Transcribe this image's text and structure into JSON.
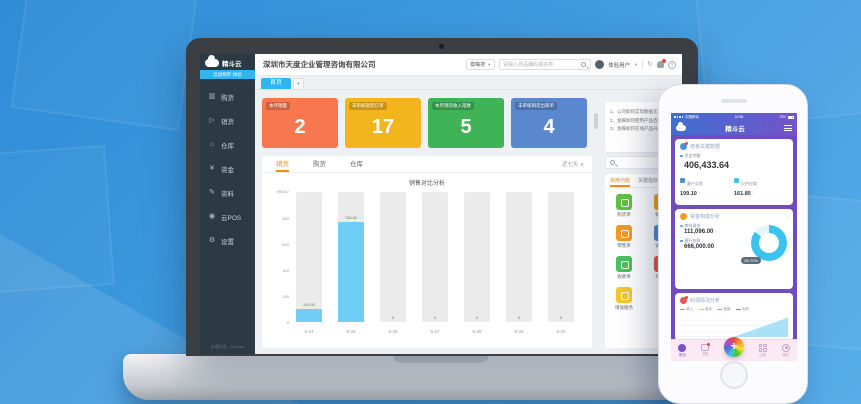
{
  "brand": {
    "name": "精斗云",
    "tagline": "云进销存·体验",
    "accent": "#2eb6f0"
  },
  "desktop": {
    "sidebar": {
      "items": [
        {
          "label": "购货"
        },
        {
          "label": "销货"
        },
        {
          "label": "仓库"
        },
        {
          "label": "资金"
        },
        {
          "label": "资料"
        },
        {
          "label": "云POS"
        },
        {
          "label": "设置"
        }
      ],
      "footer": "金蝶出品 · Jingdou"
    },
    "header": {
      "company": "深圳市天度企业管理咨询有限公司",
      "search_scope": "模糊搜",
      "search_placeholder": "请输入商品编码或名称",
      "user": "体验用户"
    },
    "tab": {
      "active": "首页"
    },
    "stat_cards": [
      {
        "label": "本月销量",
        "value": "2",
        "color": "#f7784f"
      },
      {
        "label": "未审核销货订单",
        "value": "17",
        "color": "#f3b51c"
      },
      {
        "label": "本月销货收入笔数",
        "value": "5",
        "color": "#3fb355"
      },
      {
        "label": "未审核销货出库单",
        "value": "4",
        "color": "#5a88cf"
      }
    ],
    "announcements": {
      "items": [
        "1、公司如何实现数据迁移",
        "2、金蝶如何使用产品百科",
        "3、金蝶如何在线产品升级"
      ]
    },
    "chart_card": {
      "tabs": [
        "销货",
        "购货",
        "仓库"
      ],
      "range": "近七天"
    },
    "quick_panel": {
      "tabs": [
        "常用功能",
        "关键指标"
      ],
      "left_items": [
        {
          "label": "购货单",
          "color": "#63bf47"
        },
        {
          "label": "零售单",
          "color": "#f59a23"
        },
        {
          "label": "收款单",
          "color": "#4cc05e"
        },
        {
          "label": "增值服务",
          "color": "#f6c62d"
        }
      ],
      "right_items": [
        {
          "label": "销货单",
          "color": "#f2a51a"
        },
        {
          "label": "调拨单",
          "color": "#4a90d9"
        },
        {
          "label": "付款单",
          "color": "#e95a4e"
        }
      ]
    }
  },
  "chart_data": [
    {
      "type": "bar",
      "title": "销售对比分析",
      "categories": [
        "5-24",
        "5-25",
        "5-26",
        "5-27",
        "5-28",
        "5-29",
        "5-30"
      ],
      "values": [
        100,
        766.8,
        0,
        0,
        0,
        0,
        0
      ],
      "value_labels": [
        "100.00",
        "766.80",
        "0",
        "0",
        "0",
        "0",
        "0"
      ],
      "ylim": [
        0,
        998.67
      ],
      "yticks": [
        "0",
        "200",
        "400",
        "600",
        "800"
      ],
      "ymax_label": "998.67",
      "bar_color": "#6fcdf6",
      "track_color": "#ebebeb"
    },
    {
      "type": "pie",
      "title": "资金构成分析",
      "labels": [
        "银行存款",
        "库存现金"
      ],
      "values": [
        666000,
        111096
      ],
      "colors": [
        "#3ac3ef",
        "#e3f6fd"
      ],
      "percent_label": "85.70%"
    }
  ],
  "phone": {
    "status": {
      "carrier": "中国移动",
      "time": "16:56",
      "battery": "76%"
    },
    "nav": {
      "title": "精斗云"
    },
    "card_boss": {
      "title": "老板关键数据",
      "primary_label": "资金余额",
      "primary_value": "406,433.64",
      "metrics": [
        {
          "label": "客户欠款",
          "value": "199.10"
        },
        {
          "label": "欠供应商",
          "value": "161.85"
        }
      ]
    },
    "card_funds": {
      "title": "资金构成分析",
      "rows": [
        {
          "label": "库存现金",
          "value": "111,096.00"
        },
        {
          "label": "银行存款",
          "value": "666,000.00"
        }
      ],
      "percent_label": "85.70%"
    },
    "card_profit": {
      "title": "利润情况分析",
      "legend": [
        {
          "label": "收入",
          "color": "#3ac3ef"
        },
        {
          "label": "成本",
          "color": "#f5c53a"
        },
        {
          "label": "费用",
          "color": "#f59a23"
        },
        {
          "label": "毛利",
          "color": "#e05656"
        }
      ]
    },
    "tabbar": {
      "items": [
        "首页",
        "消息",
        "应用",
        "我的"
      ]
    }
  }
}
